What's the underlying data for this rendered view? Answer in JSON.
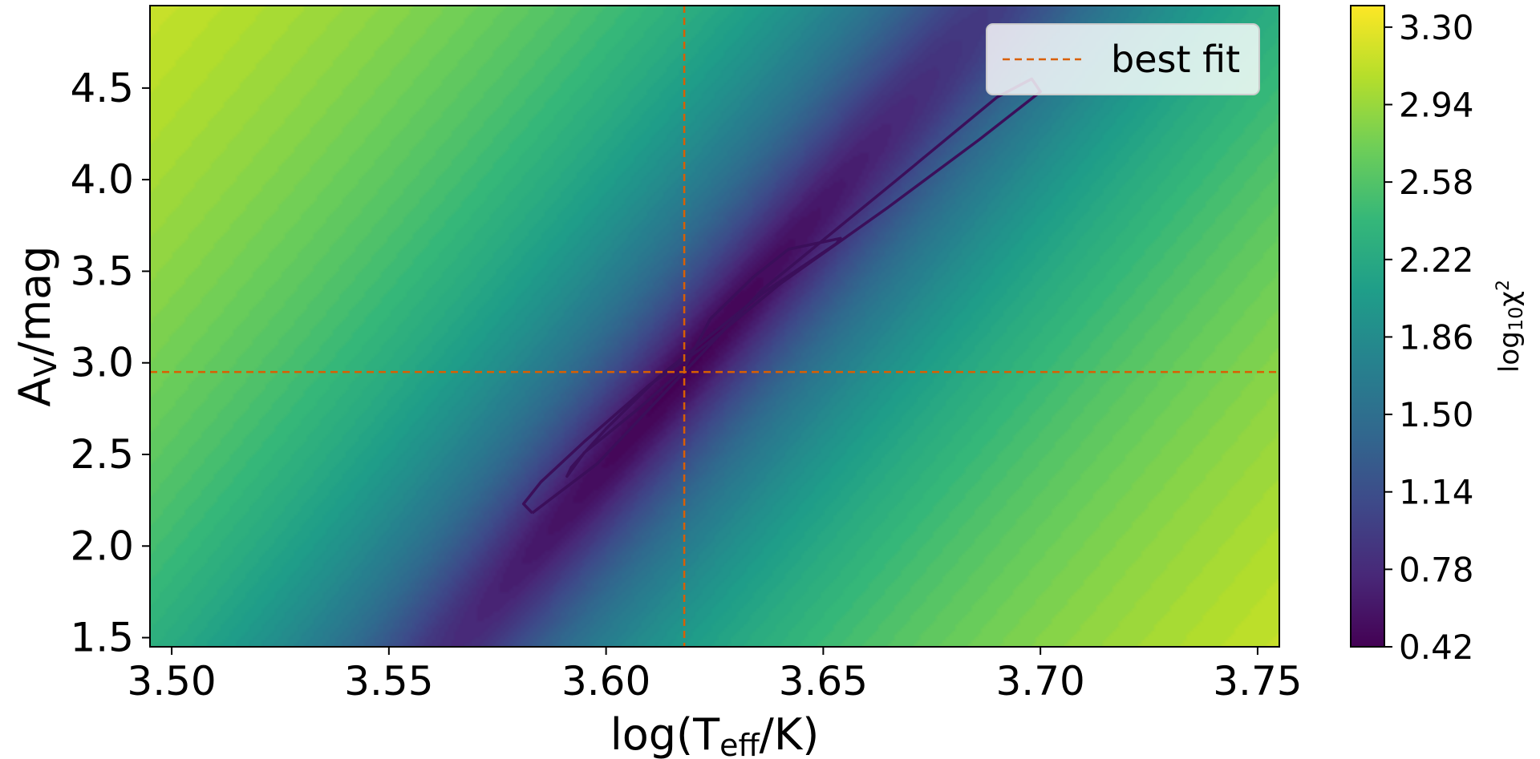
{
  "chart_data": {
    "type": "heatmap",
    "title": "",
    "xlabel": {
      "main": "log(T",
      "sub": "eff",
      "tail": "/K)"
    },
    "ylabel": {
      "main": "A",
      "sub": "V",
      "tail": "/mag"
    },
    "xlim": [
      3.495,
      3.755
    ],
    "ylim": [
      1.45,
      4.95
    ],
    "x_ticks": [
      3.5,
      3.55,
      3.6,
      3.65,
      3.7,
      3.75
    ],
    "x_tick_labels": [
      "3.50",
      "3.55",
      "3.60",
      "3.65",
      "3.70",
      "3.75"
    ],
    "y_ticks": [
      1.5,
      2.0,
      2.5,
      3.0,
      3.5,
      4.0,
      4.5
    ],
    "y_tick_labels": [
      "1.5",
      "2.0",
      "2.5",
      "3.0",
      "3.5",
      "4.0",
      "4.5"
    ],
    "colorbar": {
      "label": {
        "main": "log",
        "sub": "10",
        "tail": "χ",
        "sup": "2"
      },
      "range": [
        0.42,
        3.4
      ],
      "ticks": [
        0.42,
        0.78,
        1.14,
        1.5,
        1.86,
        2.22,
        2.58,
        2.94,
        3.3
      ],
      "tick_labels": [
        "0.42",
        "0.78",
        "1.14",
        "1.50",
        "1.86",
        "2.22",
        "2.58",
        "2.94",
        "3.30"
      ],
      "colormap": "viridis"
    },
    "best_fit": {
      "x": 3.618,
      "y": 2.95
    },
    "best_fit_color": "#d95f02",
    "contour_color": "#3b0f5a",
    "valley": {
      "slope_x_per_y": 0.0348,
      "half_width_x": 0.0051,
      "along_scale": 0.028
    },
    "contours": [
      {
        "x": [
          3.618,
          3.624,
          3.634,
          3.642,
          3.654,
          3.653,
          3.636,
          3.612,
          3.6,
          3.592,
          3.591,
          3.595,
          3.608,
          3.618
        ],
        "y": [
          2.97,
          3.24,
          3.47,
          3.62,
          3.68,
          3.65,
          3.38,
          2.92,
          2.64,
          2.43,
          2.38,
          2.51,
          2.76,
          2.97
        ]
      },
      {
        "x": [
          3.583,
          3.581,
          3.585,
          3.595,
          3.61,
          3.622,
          3.64,
          3.665,
          3.686,
          3.7,
          3.698,
          3.69,
          3.666,
          3.636,
          3.612,
          3.598,
          3.583
        ],
        "y": [
          2.18,
          2.23,
          2.35,
          2.57,
          2.88,
          3.08,
          3.43,
          3.85,
          4.22,
          4.48,
          4.55,
          4.45,
          3.98,
          3.4,
          2.8,
          2.45,
          2.18
        ]
      }
    ],
    "legend": {
      "entries": [
        "best fit"
      ],
      "position": "top-right"
    },
    "grid": false
  }
}
